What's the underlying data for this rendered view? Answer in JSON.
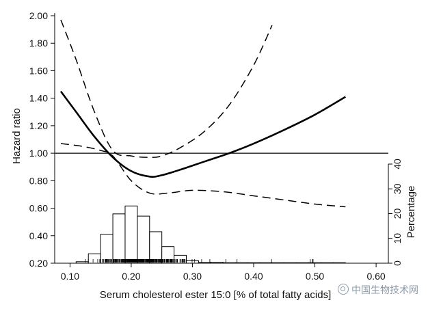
{
  "chart_data": {
    "type": "line",
    "title": "",
    "xlabel": "Serum cholesterol ester 15:0 [% of total fatty acids]",
    "ylabel": "Hazard ratio",
    "y2label": "Percentage",
    "xlim": [
      0.075,
      0.62
    ],
    "ylim": [
      0.2,
      2.0
    ],
    "y2lim": [
      0,
      40
    ],
    "x_ticks": [
      0.1,
      0.2,
      0.3,
      0.4,
      0.5,
      0.6
    ],
    "x_tick_labels": [
      "0.10",
      "0.20",
      "0.30",
      "0.40",
      "0.50",
      "0.60"
    ],
    "y_ticks": [
      0.2,
      0.4,
      0.6,
      0.8,
      1.0,
      1.2,
      1.4,
      1.6,
      1.8,
      2.0
    ],
    "y_tick_labels": [
      "0.20",
      "0.40",
      "0.60",
      "0.80",
      "1.00",
      "1.20",
      "1.40",
      "1.60",
      "1.80",
      "2.00"
    ],
    "y2_ticks": [
      0,
      10,
      20,
      30,
      40
    ],
    "y2_tick_labels": [
      "0",
      "10",
      "20",
      "30",
      "40"
    ],
    "reference_line": 1.0,
    "series": [
      {
        "name": "Hazard ratio",
        "style": "solid",
        "x": [
          0.085,
          0.11,
          0.14,
          0.17,
          0.2,
          0.23,
          0.25,
          0.28,
          0.32,
          0.36,
          0.4,
          0.45,
          0.5,
          0.55
        ],
        "y": [
          1.45,
          1.3,
          1.12,
          0.97,
          0.87,
          0.83,
          0.84,
          0.88,
          0.94,
          1.0,
          1.07,
          1.17,
          1.28,
          1.41
        ]
      },
      {
        "name": "Upper 95% CI",
        "style": "dashed",
        "x": [
          0.085,
          0.11,
          0.14,
          0.17,
          0.2,
          0.23,
          0.25,
          0.28,
          0.32,
          0.36,
          0.4,
          0.43
        ],
        "y": [
          1.97,
          1.68,
          1.3,
          1.02,
          0.98,
          0.97,
          0.98,
          1.04,
          1.16,
          1.35,
          1.64,
          1.93
        ]
      },
      {
        "name": "Lower 95% CI",
        "style": "dashed",
        "x": [
          0.085,
          0.12,
          0.15,
          0.17,
          0.2,
          0.23,
          0.26,
          0.3,
          0.35,
          0.4,
          0.45,
          0.5,
          0.55
        ],
        "y": [
          1.07,
          1.05,
          1.02,
          0.98,
          0.8,
          0.71,
          0.71,
          0.73,
          0.72,
          0.69,
          0.66,
          0.63,
          0.61
        ]
      }
    ],
    "histogram": {
      "bin_width": 0.02,
      "bin_starts": [
        0.11,
        0.13,
        0.15,
        0.17,
        0.19,
        0.21,
        0.23,
        0.25,
        0.27,
        0.29,
        0.31,
        0.33,
        0.35,
        0.37,
        0.39,
        0.41,
        0.43,
        0.45,
        0.47,
        0.49,
        0.51,
        0.53
      ],
      "percentages": [
        0.6,
        3.8,
        11.7,
        19.9,
        23.1,
        19.0,
        12.7,
        6.7,
        3.2,
        1.0,
        0.3,
        0.4,
        0.2,
        0.2,
        0.2,
        0.2,
        0.2,
        0.2,
        0.2,
        0.2,
        0.2,
        0.2
      ]
    },
    "rug_range": [
      0.1,
      0.55
    ],
    "grid": false,
    "legend": "none"
  },
  "watermark": "中国生物技术网"
}
